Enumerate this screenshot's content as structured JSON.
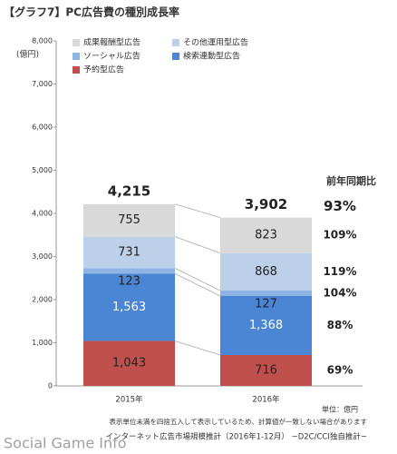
{
  "chart_data": {
    "type": "stacked_bar",
    "title": "【グラフ7】PC広告費の種別成長率",
    "ylabel": "(億円)",
    "categories": [
      "2015年",
      "2016年"
    ],
    "series": [
      {
        "name": "予約型広告",
        "color": "#c0504d",
        "values": [
          1043,
          716
        ],
        "value_labels": [
          "1,043",
          "716"
        ],
        "growth": 69,
        "growth_label": "69%"
      },
      {
        "name": "検索連動型広告",
        "color": "#4a86d4",
        "values": [
          1563,
          1368
        ],
        "value_labels": [
          "1,563",
          "1,368"
        ],
        "growth": 88,
        "growth_label": "88%"
      },
      {
        "name": "ソーシャル広告",
        "color": "#8db4e2",
        "values": [
          123,
          127
        ],
        "growth": 104,
        "growth_label": "104%"
      },
      {
        "name": "その他運用型広告",
        "color": "#bdd0ea",
        "values": [
          731,
          868
        ],
        "growth": 119,
        "growth_label": "119%"
      },
      {
        "name": "成果報酬型広告",
        "color": "#d9d9d9",
        "values": [
          755,
          823
        ],
        "growth": 109,
        "growth_label": "109%"
      }
    ],
    "totals": [
      4215,
      3902
    ],
    "total_labels": [
      "4,215",
      "3,902"
    ],
    "growth_title": "前年同期比",
    "total_growth": 93,
    "total_growth_label": "93%",
    "ylim": [
      0,
      8000
    ],
    "yticks": [
      0,
      {
        "value": 1000,
        "label": "1,000"
      },
      {
        "value": 2000,
        "label": "2,000"
      },
      {
        "value": 3000,
        "label": "3,000"
      },
      {
        "value": 4000,
        "label": "4,000"
      },
      {
        "value": 5000,
        "label": "5,000"
      },
      {
        "value": 6000,
        "label": "6,000"
      },
      {
        "value": 7000,
        "label": "7,000"
      },
      {
        "value": 8000,
        "label": "8,000"
      }
    ],
    "grid": false,
    "unit_note": "単位：億円",
    "rounding_note": "表示単位未満を四捨五入して表示しているため、計算値が一致しない場合があります",
    "source": "インターネット広告市場規模推計（2016年1-12月） ~D2C/CCI独自推計~",
    "watermark": "Social Game Info"
  }
}
